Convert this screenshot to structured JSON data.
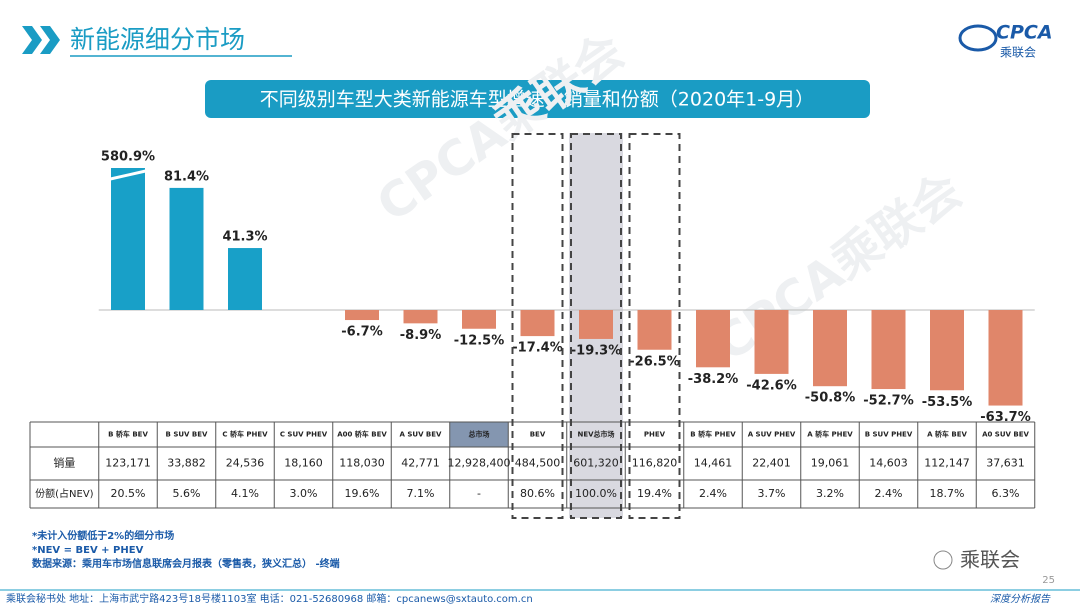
{
  "header": {
    "title": "新能源细分市场",
    "logo_text": "CPCA",
    "logo_sub": "乘联会"
  },
  "chart_data": {
    "type": "bar",
    "title": "不同级别车型大类新能源车型增速、销量和份额（2020年1-9月）",
    "categories": [
      "B 轿车 BEV",
      "B SUV BEV",
      "C 轿车 PHEV",
      "C SUV PHEV",
      "A00 轿车 BEV",
      "A SUV BEV",
      "总市场",
      "BEV",
      "NEV总市场",
      "PHEV",
      "B 轿车 PHEV",
      "A SUV PHEV",
      "A 轿车 PHEV",
      "B SUV PHEV",
      "A 轿车 BEV",
      "A0 SUV BEV"
    ],
    "values": [
      580.9,
      81.4,
      41.3,
      null,
      -6.7,
      -8.9,
      -12.5,
      -17.4,
      -19.3,
      -26.5,
      -38.2,
      -42.6,
      -50.8,
      -52.7,
      -53.5,
      -63.7
    ],
    "value_labels": [
      "580.9%",
      "81.4%",
      "41.3%",
      null,
      "-6.7%",
      "-8.9%",
      "-12.5%",
      "-17.4%",
      "-19.3%",
      "-26.5%",
      "-38.2%",
      "-42.6%",
      "-50.8%",
      "-52.7%",
      "-53.5%",
      "-63.7%"
    ],
    "colors": {
      "positive": "#18a0c8",
      "negative": "#e0866a"
    }
  },
  "table": {
    "row_labels": [
      "销量",
      "份额(占NEV)"
    ],
    "sales": [
      "123,171",
      "33,882",
      "24,536",
      "18,160",
      "118,030",
      "42,771",
      "12,928,400",
      "484,500",
      "601,320",
      "116,820",
      "14,461",
      "22,401",
      "19,061",
      "14,603",
      "112,147",
      "37,631"
    ],
    "share": [
      "20.5%",
      "5.6%",
      "4.1%",
      "3.0%",
      "19.6%",
      "7.1%",
      "-",
      "80.6%",
      "100.0%",
      "19.4%",
      "2.4%",
      "3.7%",
      "3.2%",
      "2.4%",
      "18.7%",
      "6.3%"
    ]
  },
  "notes": [
    "*未计入份额低于2%的细分市场",
    "*NEV = BEV + PHEV",
    "数据来源：乘用车市场信息联席会月报表（零售表，狭义汇总）  -终端"
  ],
  "watermark": "CPCA乘联会",
  "wechat": "乘联会",
  "page_number": "25",
  "footer": {
    "address": "乘联会秘书处    地址：上海市武宁路423号18号楼1103室    电话：021-52680968    邮箱：cpcanews@sxtauto.com.cn",
    "tag": "深度分析报告"
  }
}
